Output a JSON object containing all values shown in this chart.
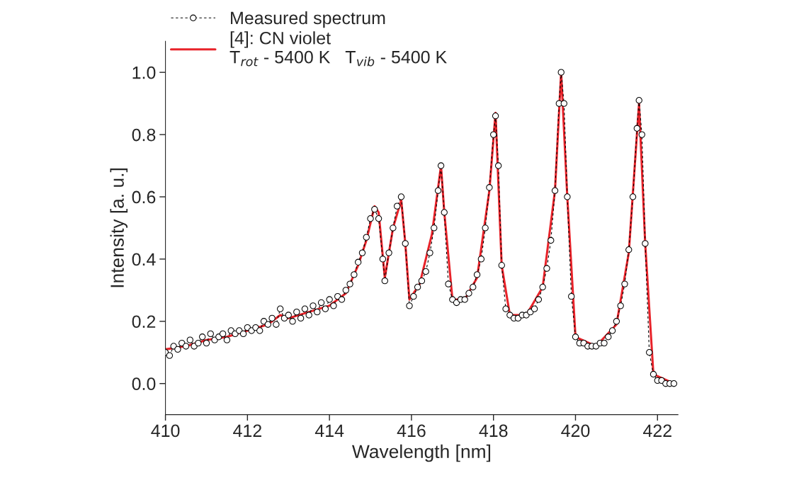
{
  "chart_data": {
    "type": "line",
    "xlabel": "Wavelength [nm]",
    "ylabel": "Intensity [a. u.]",
    "xlim": [
      410,
      422.5
    ],
    "xticks": [
      410,
      412,
      414,
      416,
      418,
      420,
      422
    ],
    "ylim": [
      -0.1,
      1.1
    ],
    "yticks": [
      {
        "value": 0,
        "label": "0.0"
      },
      {
        "value": 0.2,
        "label": "0.2"
      },
      {
        "value": 0.4,
        "label": "0.4"
      },
      {
        "value": 0.6,
        "label": "0.6"
      },
      {
        "value": 0.8,
        "label": "0.8"
      },
      {
        "value": 1,
        "label": "1.0"
      }
    ],
    "grid": false,
    "legend": "top left",
    "series": [
      {
        "name": "Measured spectrum",
        "color": "#000000",
        "marker": "circle",
        "line_style": "dashed",
        "x": [
          410.0,
          410.1,
          410.2,
          410.3,
          410.4,
          410.5,
          410.6,
          410.7,
          410.8,
          410.9,
          411.0,
          411.1,
          411.2,
          411.3,
          411.4,
          411.5,
          411.6,
          411.7,
          411.8,
          411.9,
          412.0,
          412.1,
          412.2,
          412.3,
          412.4,
          412.5,
          412.6,
          412.7,
          412.8,
          412.9,
          413.0,
          413.1,
          413.2,
          413.3,
          413.4,
          413.5,
          413.6,
          413.7,
          413.8,
          413.9,
          414.0,
          414.1,
          414.2,
          414.3,
          414.4,
          414.5,
          414.6,
          414.7,
          414.8,
          414.9,
          415.0,
          415.1,
          415.2,
          415.3,
          415.35,
          415.45,
          415.55,
          415.65,
          415.75,
          415.85,
          415.95,
          416.05,
          416.15,
          416.25,
          416.35,
          416.45,
          416.55,
          416.65,
          416.72,
          416.8,
          416.9,
          417.0,
          417.1,
          417.2,
          417.3,
          417.4,
          417.5,
          417.6,
          417.7,
          417.8,
          417.9,
          418.0,
          418.05,
          418.12,
          418.2,
          418.3,
          418.4,
          418.5,
          418.6,
          418.7,
          418.8,
          418.9,
          419.0,
          419.1,
          419.2,
          419.3,
          419.4,
          419.5,
          419.6,
          419.65,
          419.72,
          419.8,
          419.9,
          420.0,
          420.1,
          420.2,
          420.3,
          420.4,
          420.5,
          420.6,
          420.7,
          420.8,
          420.9,
          421.0,
          421.1,
          421.2,
          421.3,
          421.4,
          421.5,
          421.55,
          421.62,
          421.7,
          421.8,
          421.9,
          422.0,
          422.1,
          422.2,
          422.3,
          422.4
        ],
        "values": [
          0.1,
          0.09,
          0.12,
          0.11,
          0.13,
          0.12,
          0.14,
          0.12,
          0.13,
          0.15,
          0.13,
          0.16,
          0.14,
          0.15,
          0.16,
          0.14,
          0.17,
          0.16,
          0.17,
          0.16,
          0.18,
          0.17,
          0.18,
          0.17,
          0.2,
          0.19,
          0.21,
          0.19,
          0.24,
          0.21,
          0.22,
          0.2,
          0.23,
          0.21,
          0.24,
          0.22,
          0.25,
          0.23,
          0.26,
          0.24,
          0.27,
          0.25,
          0.28,
          0.27,
          0.3,
          0.32,
          0.35,
          0.39,
          0.42,
          0.47,
          0.53,
          0.56,
          0.53,
          0.4,
          0.33,
          0.42,
          0.5,
          0.57,
          0.6,
          0.45,
          0.25,
          0.28,
          0.31,
          0.33,
          0.36,
          0.42,
          0.5,
          0.62,
          0.7,
          0.55,
          0.32,
          0.27,
          0.26,
          0.27,
          0.27,
          0.29,
          0.31,
          0.35,
          0.4,
          0.5,
          0.63,
          0.8,
          0.86,
          0.7,
          0.38,
          0.24,
          0.22,
          0.21,
          0.21,
          0.22,
          0.22,
          0.23,
          0.24,
          0.27,
          0.31,
          0.37,
          0.46,
          0.62,
          0.9,
          1.0,
          0.9,
          0.6,
          0.28,
          0.15,
          0.13,
          0.13,
          0.12,
          0.12,
          0.12,
          0.13,
          0.13,
          0.15,
          0.17,
          0.2,
          0.25,
          0.32,
          0.43,
          0.6,
          0.82,
          0.91,
          0.8,
          0.45,
          0.1,
          0.03,
          0.01,
          0.01,
          0.0,
          0.0,
          0.0
        ]
      },
      {
        "name": "[4]: CN violet\nT$_{rot}$ - 5400 K   T$_{vib}$ - 5400 K",
        "color": "#e8232a",
        "marker": "none",
        "line_style": "solid",
        "x": [
          410.0,
          410.5,
          411.0,
          411.5,
          412.0,
          412.5,
          412.8,
          413.0,
          413.5,
          414.0,
          414.4,
          414.7,
          414.9,
          415.1,
          415.2,
          415.35,
          415.55,
          415.75,
          415.85,
          415.95,
          416.2,
          416.5,
          416.72,
          416.8,
          417.0,
          417.3,
          417.6,
          417.9,
          418.05,
          418.2,
          418.4,
          418.8,
          419.2,
          419.5,
          419.65,
          419.8,
          420.0,
          420.5,
          421.0,
          421.3,
          421.55,
          421.7,
          421.9,
          422.4
        ],
        "values": [
          0.11,
          0.12,
          0.14,
          0.15,
          0.17,
          0.19,
          0.22,
          0.21,
          0.23,
          0.25,
          0.29,
          0.38,
          0.46,
          0.57,
          0.55,
          0.34,
          0.5,
          0.59,
          0.45,
          0.27,
          0.32,
          0.48,
          0.7,
          0.55,
          0.27,
          0.27,
          0.34,
          0.62,
          0.87,
          0.38,
          0.22,
          0.22,
          0.31,
          0.62,
          1.0,
          0.6,
          0.15,
          0.12,
          0.19,
          0.42,
          0.9,
          0.45,
          0.03,
          0.0
        ]
      }
    ]
  }
}
